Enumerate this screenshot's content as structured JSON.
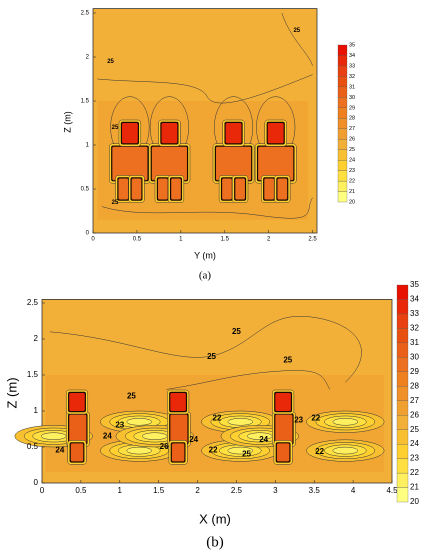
{
  "chart_data": [
    {
      "type": "contour",
      "caption": "(a)",
      "x_label": "Y (m)",
      "y_label": "Z (m)",
      "xlim": [
        0,
        2.55
      ],
      "ylim": [
        0,
        2.55
      ],
      "xticks": [
        0,
        0.5,
        1,
        1.5,
        2,
        2.5
      ],
      "yticks": [
        0,
        0.5,
        1,
        1.5,
        2,
        2.5
      ],
      "colorbar": {
        "levels": [
          20,
          21,
          22,
          23,
          24,
          25,
          26,
          27,
          28,
          29,
          30,
          31,
          32,
          33,
          34,
          35
        ],
        "colors": [
          "#ffff80",
          "#fff060",
          "#ffe040",
          "#ffd030",
          "#f8c030",
          "#f2b038",
          "#f0a030",
          "#f09028",
          "#ee8020",
          "#ec7020",
          "#ea6018",
          "#e85010",
          "#e84010",
          "#e82808",
          "#e81000"
        ]
      },
      "contour_labels": [
        {
          "value": 25,
          "x": 2.32,
          "y": 2.3
        },
        {
          "value": 25,
          "x": 0.2,
          "y": 1.95
        },
        {
          "value": 25,
          "x": 0.25,
          "y": 1.2
        },
        {
          "value": 25,
          "x": 0.25,
          "y": 0.35
        }
      ]
    },
    {
      "type": "contour",
      "caption": "(b)",
      "x_label": "X (m)",
      "y_label": "Z (m)",
      "xlim": [
        0,
        4.5
      ],
      "ylim": [
        0,
        2.55
      ],
      "xticks": [
        0,
        0.5,
        1,
        1.5,
        2,
        2.5,
        3,
        3.5,
        4,
        4.5
      ],
      "yticks": [
        0,
        0.5,
        1,
        1.5,
        2,
        2.5
      ],
      "colorbar": {
        "levels": [
          20,
          21,
          22,
          23,
          24,
          25,
          26,
          27,
          28,
          29,
          30,
          31,
          32,
          33,
          34,
          35
        ],
        "colors": [
          "#ffff80",
          "#fff060",
          "#ffe040",
          "#ffd030",
          "#f8c030",
          "#f2b038",
          "#f0a030",
          "#f09028",
          "#ee8020",
          "#ec7020",
          "#ea6018",
          "#e85010",
          "#e84010",
          "#e82808",
          "#e81000"
        ]
      },
      "contour_labels": [
        {
          "value": 25,
          "x": 2.5,
          "y": 2.1
        },
        {
          "value": 25,
          "x": 2.18,
          "y": 1.75
        },
        {
          "value": 25,
          "x": 3.16,
          "y": 1.7
        },
        {
          "value": 25,
          "x": 1.15,
          "y": 1.2
        },
        {
          "value": 23,
          "x": 1.0,
          "y": 0.8
        },
        {
          "value": 24,
          "x": 0.84,
          "y": 0.65
        },
        {
          "value": 24,
          "x": 0.23,
          "y": 0.45
        },
        {
          "value": 26,
          "x": 1.57,
          "y": 0.5
        },
        {
          "value": 22,
          "x": 2.25,
          "y": 0.9
        },
        {
          "value": 24,
          "x": 1.95,
          "y": 0.6
        },
        {
          "value": 22,
          "x": 2.2,
          "y": 0.45
        },
        {
          "value": 23,
          "x": 3.3,
          "y": 0.87
        },
        {
          "value": 24,
          "x": 2.85,
          "y": 0.6
        },
        {
          "value": 25,
          "x": 2.63,
          "y": 0.4
        },
        {
          "value": 22,
          "x": 3.52,
          "y": 0.9
        },
        {
          "value": 22,
          "x": 3.57,
          "y": 0.43
        }
      ]
    }
  ]
}
